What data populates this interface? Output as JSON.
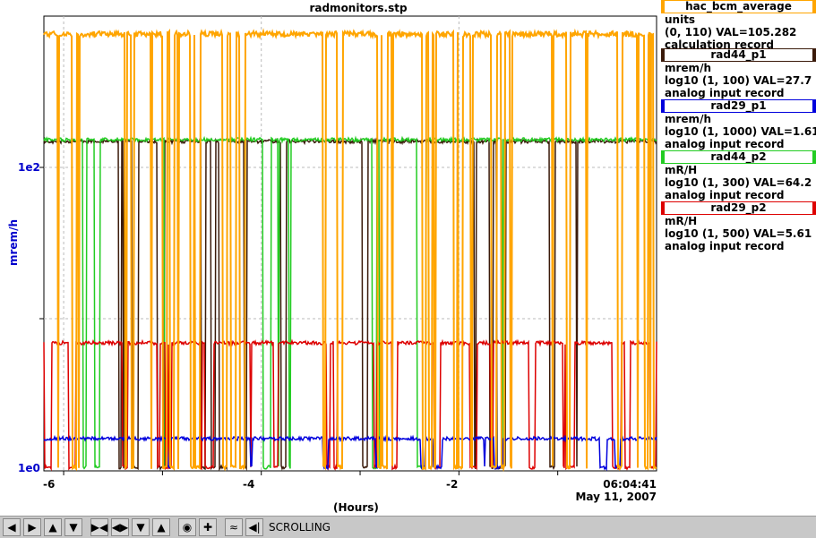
{
  "title": "radmonitors.stp",
  "axes": {
    "y_label": "mrem/h",
    "y_ticks": [
      "1e2",
      "1e0"
    ],
    "x_ticks": [
      "-6",
      "-4",
      "-2"
    ],
    "x_label": "(Hours)",
    "timestamp_time": "06:04:41",
    "timestamp_date": "May 11, 2007"
  },
  "legend": [
    {
      "name": "hac_bcm_average",
      "color": "#ffa500",
      "line1": "units",
      "line2": "(0, 110) VAL=105.282",
      "line3": "calculation record"
    },
    {
      "name": "rad44_p1",
      "color": "#3a1a0a",
      "line1": "mrem/h",
      "line2": "log10 (1, 100) VAL=27.7",
      "line3": "analog input record"
    },
    {
      "name": "rad29_p1",
      "color": "#0000dd",
      "line1": "mrem/h",
      "line2": "log10 (1, 1000) VAL=1.61",
      "line3": "analog input record"
    },
    {
      "name": "rad44_p2",
      "color": "#22cc22",
      "line1": "mR/H",
      "line2": "log10 (1, 300) VAL=64.2",
      "line3": "analog input record"
    },
    {
      "name": "rad29_p2",
      "color": "#dd0000",
      "line1": "mR/H",
      "line2": "log10 (1, 500) VAL=5.61",
      "line3": "analog input record"
    }
  ],
  "toolbar": {
    "buttons": [
      "pan-left",
      "pan-right",
      "pan-up",
      "pan-down",
      "zoom-in-x",
      "zoom-out-x",
      "zoom-in-y",
      "zoom-out-y",
      "config",
      "add",
      "scale",
      "jump-to-now"
    ],
    "mode_label": "SCROLLING"
  },
  "chart_data": {
    "type": "line",
    "title": "radmonitors.stp",
    "xlabel": "(Hours)",
    "ylabel": "mrem/h",
    "y_scale": "log",
    "xlim": [
      -6.2,
      0
    ],
    "grid": true,
    "legend_position": "right",
    "series": [
      {
        "name": "hac_bcm_average",
        "color": "#ffa500",
        "level": "near top (~105 of 0-110)",
        "seed": 11
      },
      {
        "name": "rad44_p1",
        "color": "#3a1a0a",
        "level": "~28",
        "seed": 23
      },
      {
        "name": "rad29_p1",
        "color": "#0000dd",
        "level": "~1.6",
        "seed": 37
      },
      {
        "name": "rad44_p2",
        "color": "#22cc22",
        "level": "~64",
        "seed": 41
      },
      {
        "name": "rad29_p2",
        "color": "#dd0000",
        "level": "~5.6",
        "seed": 53
      }
    ]
  }
}
